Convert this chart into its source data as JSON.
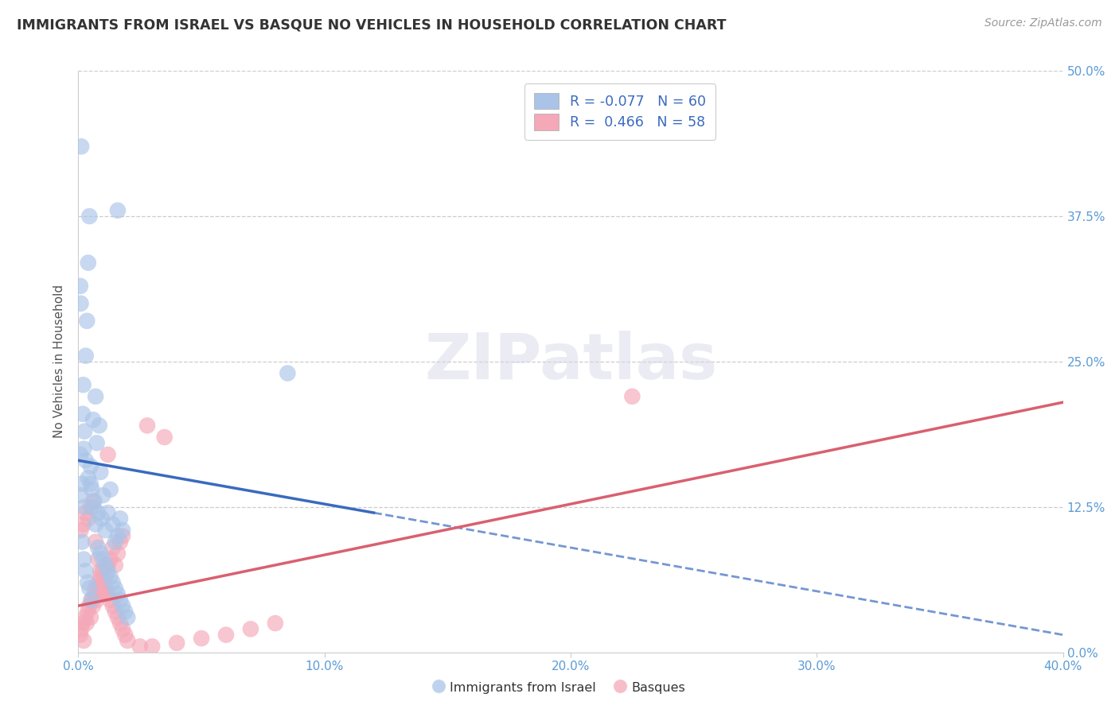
{
  "title": "IMMIGRANTS FROM ISRAEL VS BASQUE NO VEHICLES IN HOUSEHOLD CORRELATION CHART",
  "source": "Source: ZipAtlas.com",
  "ylabel": "No Vehicles in Household",
  "watermark": "ZIPatlas",
  "legend_label1": "Immigrants from Israel",
  "legend_label2": "Basques",
  "R1": -0.077,
  "N1": 60,
  "R2": 0.466,
  "N2": 58,
  "color1": "#aac4e8",
  "color2": "#f4a8b8",
  "line_color1": "#3a6abf",
  "line_color2": "#d96070",
  "xmin": 0.0,
  "xmax": 40.0,
  "ymin": 0.0,
  "ymax": 50.0,
  "blue_line_x0": 0.0,
  "blue_line_y0": 16.5,
  "blue_line_x1": 40.0,
  "blue_line_y1": 1.5,
  "blue_solid_end_x": 12.0,
  "pink_line_x0": 0.0,
  "pink_line_y0": 4.0,
  "pink_line_x1": 40.0,
  "pink_line_y1": 21.5,
  "blue_x": [
    0.15,
    0.25,
    0.08,
    0.12,
    0.18,
    0.22,
    0.3,
    0.35,
    0.4,
    0.45,
    0.5,
    0.55,
    0.6,
    0.65,
    0.7,
    0.75,
    0.8,
    0.85,
    0.9,
    0.95,
    1.0,
    1.1,
    1.2,
    1.3,
    1.4,
    1.5,
    1.6,
    1.7,
    1.8,
    0.1,
    0.2,
    0.3,
    0.4,
    0.5,
    0.6,
    0.7,
    0.8,
    0.9,
    1.0,
    1.1,
    1.2,
    1.3,
    1.4,
    1.5,
    1.6,
    1.7,
    1.8,
    1.9,
    2.0,
    0.08,
    0.15,
    0.22,
    0.3,
    0.38,
    0.45,
    0.52,
    8.5,
    0.25,
    1.6,
    0.1
  ],
  "blue_y": [
    14.5,
    12.5,
    31.5,
    43.5,
    20.5,
    17.5,
    25.5,
    28.5,
    33.5,
    37.5,
    16.0,
    14.0,
    20.0,
    13.0,
    22.0,
    18.0,
    12.0,
    19.5,
    15.5,
    11.5,
    13.5,
    10.5,
    12.0,
    14.0,
    11.0,
    9.5,
    10.0,
    11.5,
    10.5,
    30.0,
    23.0,
    16.5,
    15.0,
    14.5,
    12.5,
    11.0,
    9.0,
    8.5,
    8.0,
    7.5,
    7.0,
    6.5,
    6.0,
    5.5,
    5.0,
    4.5,
    4.0,
    3.5,
    3.0,
    17.0,
    9.5,
    8.0,
    7.0,
    6.0,
    5.5,
    4.5,
    24.0,
    19.0,
    38.0,
    13.5
  ],
  "pink_x": [
    0.08,
    0.12,
    0.18,
    0.22,
    0.28,
    0.33,
    0.38,
    0.44,
    0.5,
    0.55,
    0.6,
    0.65,
    0.7,
    0.75,
    0.8,
    0.85,
    0.9,
    0.95,
    1.0,
    1.1,
    1.2,
    1.3,
    1.4,
    1.5,
    1.6,
    1.7,
    1.8,
    0.1,
    0.2,
    0.3,
    0.4,
    0.5,
    0.6,
    0.7,
    0.8,
    0.9,
    1.0,
    1.1,
    1.2,
    1.3,
    1.4,
    1.5,
    1.6,
    1.7,
    1.8,
    1.9,
    2.0,
    2.5,
    3.0,
    4.0,
    5.0,
    6.0,
    7.0,
    8.0,
    22.5,
    1.2,
    2.8,
    3.5
  ],
  "pink_y": [
    1.5,
    2.0,
    2.5,
    1.0,
    3.0,
    2.5,
    3.5,
    4.0,
    3.0,
    4.5,
    4.0,
    5.0,
    5.5,
    4.5,
    6.0,
    5.5,
    6.5,
    5.0,
    7.0,
    6.5,
    7.5,
    8.0,
    9.0,
    7.5,
    8.5,
    9.5,
    10.0,
    10.5,
    11.0,
    12.0,
    11.5,
    12.5,
    13.0,
    9.5,
    8.0,
    7.0,
    6.0,
    5.5,
    5.0,
    4.5,
    4.0,
    3.5,
    3.0,
    2.5,
    2.0,
    1.5,
    1.0,
    0.5,
    0.5,
    0.8,
    1.2,
    1.5,
    2.0,
    2.5,
    22.0,
    17.0,
    19.5,
    18.5
  ]
}
